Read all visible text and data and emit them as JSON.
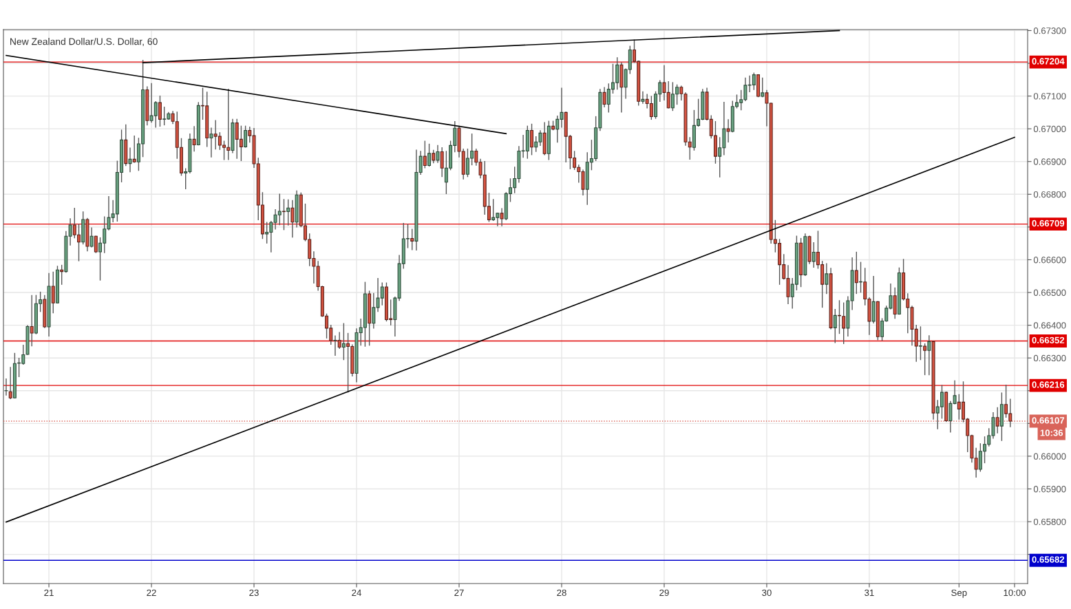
{
  "chart_data": {
    "type": "candlestick",
    "title": "New Zealand Dollar/U.S. Dollar, 60",
    "categories": [
      null,
      null,
      null,
      null,
      null,
      null,
      null,
      null,
      null,
      null,
      "21",
      null,
      null,
      null,
      null,
      null,
      null,
      null,
      null,
      null,
      null,
      null,
      null,
      null,
      null,
      null,
      null,
      null,
      null,
      null,
      null,
      null,
      null,
      null,
      "22",
      null,
      null,
      null,
      null,
      null,
      null,
      null,
      null,
      null,
      null,
      null,
      null,
      null,
      null,
      null,
      null,
      null,
      null,
      null,
      null,
      null,
      null,
      null,
      "23",
      null,
      null,
      null,
      null,
      null,
      null,
      null,
      null,
      null,
      null,
      null,
      null,
      null,
      null,
      null,
      null,
      null,
      null,
      null,
      null,
      null,
      null,
      null,
      "24",
      null,
      null,
      null,
      null,
      null,
      null,
      null,
      null,
      null,
      null,
      null,
      null,
      null,
      null,
      null,
      null,
      null,
      null,
      null,
      null,
      null,
      null,
      null,
      "27",
      null,
      null,
      null,
      null,
      null,
      null,
      null,
      null,
      null,
      null,
      null,
      null,
      null,
      null,
      null,
      null,
      null,
      null,
      null,
      null,
      null,
      null,
      null,
      "28",
      null,
      null,
      null,
      null,
      null,
      null,
      null,
      null,
      null,
      null,
      null,
      null,
      null,
      null,
      null,
      null,
      null,
      null,
      null,
      null,
      null,
      null,
      null,
      "29",
      null,
      null,
      null,
      null,
      null,
      null,
      null,
      null,
      null,
      null,
      null,
      null,
      null,
      null,
      null,
      null,
      null,
      null,
      null,
      null,
      null,
      null,
      null,
      "30",
      null,
      null,
      null,
      null,
      null,
      null,
      null,
      null,
      null,
      null,
      null,
      null,
      null,
      null,
      null,
      null,
      null,
      null,
      null,
      null,
      null,
      null,
      null,
      "31",
      null,
      null,
      null,
      null,
      null,
      null,
      null,
      null,
      null,
      null,
      null,
      null,
      null,
      null,
      null,
      null,
      null,
      null,
      null,
      null,
      "Sep",
      null,
      null,
      null,
      null,
      null,
      null,
      null,
      null,
      null,
      null,
      null,
      null,
      "10:00"
    ],
    "ohlc": [
      [
        0.662,
        0.66236,
        0.66187,
        0.662
      ],
      [
        0.66197,
        0.66271,
        0.66176,
        0.66178
      ],
      [
        0.66178,
        0.66314,
        0.66178,
        0.66283
      ],
      [
        0.66284,
        0.66299,
        0.66243,
        0.66285
      ],
      [
        0.66283,
        0.66339,
        0.66281,
        0.6631
      ],
      [
        0.66311,
        0.66399,
        0.66311,
        0.66396
      ],
      [
        0.66396,
        0.66491,
        0.66337,
        0.66376
      ],
      [
        0.66376,
        0.66491,
        0.66374,
        0.66466
      ],
      [
        0.66466,
        0.66501,
        0.66442,
        0.66478
      ],
      [
        0.66479,
        0.66491,
        0.66393,
        0.66395
      ],
      [
        0.66395,
        0.66558,
        0.66367,
        0.66519
      ],
      [
        0.66519,
        0.66562,
        0.66438,
        0.66468
      ],
      [
        0.66468,
        0.6658,
        0.66468,
        0.66569
      ],
      [
        0.66569,
        0.66583,
        0.66525,
        0.66564
      ],
      [
        0.66564,
        0.66686,
        0.66562,
        0.66672
      ],
      [
        0.66672,
        0.66725,
        0.66645,
        0.66706
      ],
      [
        0.66706,
        0.66757,
        0.66667,
        0.66676
      ],
      [
        0.66676,
        0.66708,
        0.66597,
        0.66654
      ],
      [
        0.66654,
        0.66746,
        0.66648,
        0.66723
      ],
      [
        0.66723,
        0.66726,
        0.66627,
        0.66641
      ],
      [
        0.66641,
        0.66697,
        0.66639,
        0.66672
      ],
      [
        0.66672,
        0.66672,
        0.66622,
        0.66624
      ],
      [
        0.66624,
        0.66667,
        0.66538,
        0.66651
      ],
      [
        0.66651,
        0.66731,
        0.66622,
        0.66694
      ],
      [
        0.66694,
        0.66793,
        0.66691,
        0.66729
      ],
      [
        0.66729,
        0.66781,
        0.66716,
        0.6674
      ],
      [
        0.6674,
        0.66901,
        0.66718,
        0.66867
      ],
      [
        0.66867,
        0.66996,
        0.66838,
        0.66966
      ],
      [
        0.66966,
        0.67012,
        0.66888,
        0.66894
      ],
      [
        0.66894,
        0.66941,
        0.66869,
        0.66907
      ],
      [
        0.66907,
        0.66978,
        0.66898,
        0.66899
      ],
      [
        0.66899,
        0.66971,
        0.66873,
        0.66954
      ],
      [
        0.66954,
        0.67209,
        0.66915,
        0.67119
      ],
      [
        0.67119,
        0.67128,
        0.67012,
        0.67025
      ],
      [
        0.67025,
        0.67138,
        0.6702,
        0.6704
      ],
      [
        0.6704,
        0.67083,
        0.67005,
        0.6708
      ],
      [
        0.6708,
        0.671,
        0.67008,
        0.67029
      ],
      [
        0.67029,
        0.67066,
        0.67012,
        0.6703
      ],
      [
        0.6703,
        0.6705,
        0.67029,
        0.67046
      ],
      [
        0.67046,
        0.67053,
        0.67016,
        0.67023
      ],
      [
        0.67022,
        0.67051,
        0.6691,
        0.66943
      ],
      [
        0.66943,
        0.6697,
        0.66858,
        0.66865
      ],
      [
        0.66865,
        0.66878,
        0.66817,
        0.66869
      ],
      [
        0.66869,
        0.66984,
        0.66865,
        0.66968
      ],
      [
        0.66968,
        0.67007,
        0.66932,
        0.66951
      ],
      [
        0.66951,
        0.6708,
        0.66951,
        0.67071
      ],
      [
        0.67071,
        0.67124,
        0.67029,
        0.6707
      ],
      [
        0.6707,
        0.67112,
        0.66946,
        0.66972
      ],
      [
        0.66972,
        0.67002,
        0.66914,
        0.66984
      ],
      [
        0.66984,
        0.67025,
        0.66938,
        0.66977
      ],
      [
        0.66977,
        0.66988,
        0.66937,
        0.6695
      ],
      [
        0.6695,
        0.66962,
        0.66906,
        0.66943
      ],
      [
        0.66943,
        0.67121,
        0.66906,
        0.66934
      ],
      [
        0.66934,
        0.67029,
        0.66927,
        0.67018
      ],
      [
        0.67018,
        0.67029,
        0.6691,
        0.66968
      ],
      [
        0.66968,
        0.67008,
        0.66903,
        0.66945
      ],
      [
        0.66945,
        0.67008,
        0.66944,
        0.66995
      ],
      [
        0.66995,
        0.67005,
        0.66959,
        0.66979
      ],
      [
        0.66979,
        0.67001,
        0.66882,
        0.66893
      ],
      [
        0.66893,
        0.6691,
        0.66722,
        0.66767
      ],
      [
        0.66767,
        0.66805,
        0.66665,
        0.66679
      ],
      [
        0.66679,
        0.66714,
        0.66651,
        0.66684
      ],
      [
        0.66684,
        0.66717,
        0.66624,
        0.66714
      ],
      [
        0.66714,
        0.66753,
        0.66694,
        0.66737
      ],
      [
        0.66737,
        0.668,
        0.66707,
        0.66748
      ],
      [
        0.66748,
        0.66784,
        0.66692,
        0.66747
      ],
      [
        0.66747,
        0.66783,
        0.66706,
        0.66758
      ],
      [
        0.66758,
        0.66781,
        0.66669,
        0.66715
      ],
      [
        0.66715,
        0.6681,
        0.667,
        0.66798
      ],
      [
        0.66798,
        0.66804,
        0.66701,
        0.66704
      ],
      [
        0.66704,
        0.6677,
        0.66658,
        0.66662
      ],
      [
        0.66662,
        0.66679,
        0.66582,
        0.66604
      ],
      [
        0.66604,
        0.66624,
        0.66529,
        0.6658
      ],
      [
        0.6658,
        0.66595,
        0.66507,
        0.66518
      ],
      [
        0.66518,
        0.66519,
        0.66427,
        0.66428
      ],
      [
        0.66428,
        0.66434,
        0.66361,
        0.66391
      ],
      [
        0.66391,
        0.664,
        0.66342,
        0.66353
      ],
      [
        0.66353,
        0.66367,
        0.66308,
        0.66354
      ],
      [
        0.66354,
        0.66378,
        0.66329,
        0.66333
      ],
      [
        0.66333,
        0.66405,
        0.66295,
        0.66344
      ],
      [
        0.66344,
        0.66375,
        0.66196,
        0.66335
      ],
      [
        0.66335,
        0.6634,
        0.66245,
        0.66253
      ],
      [
        0.66253,
        0.66389,
        0.66227,
        0.66377
      ],
      [
        0.66377,
        0.66419,
        0.66339,
        0.66393
      ],
      [
        0.66393,
        0.66531,
        0.66336,
        0.66496
      ],
      [
        0.66496,
        0.66504,
        0.66339,
        0.66406
      ],
      [
        0.66406,
        0.66497,
        0.66391,
        0.66454
      ],
      [
        0.66454,
        0.66543,
        0.66442,
        0.66483
      ],
      [
        0.66483,
        0.66529,
        0.66462,
        0.66517
      ],
      [
        0.66517,
        0.66529,
        0.66413,
        0.66417
      ],
      [
        0.6642,
        0.66477,
        0.66401,
        0.66417
      ],
      [
        0.66417,
        0.66486,
        0.66367,
        0.66483
      ],
      [
        0.66483,
        0.66613,
        0.66476,
        0.66588
      ],
      [
        0.66588,
        0.66711,
        0.66574,
        0.66664
      ],
      [
        0.66664,
        0.66708,
        0.66637,
        0.66665
      ],
      [
        0.66665,
        0.66693,
        0.66631,
        0.66657
      ],
      [
        0.66657,
        0.66935,
        0.6663,
        0.66867
      ],
      [
        0.66867,
        0.66931,
        0.66861,
        0.66916
      ],
      [
        0.66916,
        0.66962,
        0.66881,
        0.66888
      ],
      [
        0.66888,
        0.66953,
        0.66886,
        0.66925
      ],
      [
        0.66925,
        0.66934,
        0.66896,
        0.66904
      ],
      [
        0.66904,
        0.66949,
        0.66897,
        0.6693
      ],
      [
        0.6693,
        0.66942,
        0.66854,
        0.6688
      ],
      [
        0.66837,
        0.66931,
        0.66802,
        0.6688
      ],
      [
        0.6688,
        0.66962,
        0.66875,
        0.66949
      ],
      [
        0.66949,
        0.67022,
        0.6693,
        0.67002
      ],
      [
        0.67002,
        0.67008,
        0.66914,
        0.66931
      ],
      [
        0.66931,
        0.66938,
        0.66847,
        0.66861
      ],
      [
        0.66861,
        0.66938,
        0.66854,
        0.6691
      ],
      [
        0.6691,
        0.66984,
        0.6689,
        0.66932
      ],
      [
        0.66932,
        0.66938,
        0.66889,
        0.66898
      ],
      [
        0.66898,
        0.66907,
        0.6685,
        0.66859
      ],
      [
        0.66859,
        0.669,
        0.66739,
        0.66763
      ],
      [
        0.66763,
        0.66803,
        0.66717,
        0.66722
      ],
      [
        0.66722,
        0.66784,
        0.6672,
        0.66729
      ],
      [
        0.66729,
        0.66742,
        0.66704,
        0.66742
      ],
      [
        0.66742,
        0.66756,
        0.66704,
        0.66725
      ],
      [
        0.66725,
        0.66805,
        0.66722,
        0.66802
      ],
      [
        0.66802,
        0.66847,
        0.66778,
        0.6682
      ],
      [
        0.6682,
        0.66883,
        0.66805,
        0.66848
      ],
      [
        0.66848,
        0.66946,
        0.66837,
        0.66932
      ],
      [
        0.66932,
        0.6698,
        0.66913,
        0.66933
      ],
      [
        0.66932,
        0.67008,
        0.6691,
        0.66995
      ],
      [
        0.66995,
        0.67014,
        0.66921,
        0.66944
      ],
      [
        0.66944,
        0.66976,
        0.66931,
        0.6696
      ],
      [
        0.6696,
        0.66994,
        0.66949,
        0.66987
      ],
      [
        0.66987,
        0.67019,
        0.66921,
        0.66924
      ],
      [
        0.66924,
        0.67023,
        0.66906,
        0.67008
      ],
      [
        0.67008,
        0.67023,
        0.66997,
        0.66999
      ],
      [
        0.66999,
        0.67039,
        0.66959,
        0.67029
      ],
      [
        0.67029,
        0.67124,
        0.67005,
        0.6705
      ],
      [
        0.6705,
        0.67051,
        0.66899,
        0.66977
      ],
      [
        0.66977,
        0.6698,
        0.66878,
        0.66911
      ],
      [
        0.66911,
        0.66931,
        0.66876,
        0.66882
      ],
      [
        0.66882,
        0.66889,
        0.66837,
        0.66869
      ],
      [
        0.66869,
        0.66874,
        0.66798,
        0.66815
      ],
      [
        0.66815,
        0.66927,
        0.66769,
        0.66898
      ],
      [
        0.66898,
        0.66965,
        0.66875,
        0.66909
      ],
      [
        0.66909,
        0.67037,
        0.66903,
        0.67003
      ],
      [
        0.67003,
        0.6712,
        0.66995,
        0.67111
      ],
      [
        0.67111,
        0.67126,
        0.67067,
        0.67075
      ],
      [
        0.67075,
        0.67137,
        0.67051,
        0.67121
      ],
      [
        0.67121,
        0.67197,
        0.67109,
        0.67141
      ],
      [
        0.67141,
        0.67217,
        0.67121,
        0.67195
      ],
      [
        0.67195,
        0.67201,
        0.67051,
        0.67127
      ],
      [
        0.67127,
        0.67183,
        0.67093,
        0.67181
      ],
      [
        0.67181,
        0.67252,
        0.67169,
        0.67241
      ],
      [
        0.67241,
        0.67271,
        0.67203,
        0.67206
      ],
      [
        0.67206,
        0.67207,
        0.67072,
        0.67084
      ],
      [
        0.67084,
        0.67113,
        0.67078,
        0.6709
      ],
      [
        0.6709,
        0.67105,
        0.67064,
        0.67077
      ],
      [
        0.67077,
        0.67099,
        0.67029,
        0.67037
      ],
      [
        0.67037,
        0.67113,
        0.67032,
        0.67106
      ],
      [
        0.67106,
        0.67147,
        0.67084,
        0.67141
      ],
      [
        0.67141,
        0.67193,
        0.67088,
        0.67111
      ],
      [
        0.67111,
        0.67144,
        0.67064,
        0.67064
      ],
      [
        0.67064,
        0.67141,
        0.67056,
        0.67106
      ],
      [
        0.67106,
        0.67134,
        0.67075,
        0.67127
      ],
      [
        0.67127,
        0.6713,
        0.67088,
        0.67107
      ],
      [
        0.67106,
        0.6711,
        0.6695,
        0.6696
      ],
      [
        0.6696,
        0.66973,
        0.66907,
        0.66944
      ],
      [
        0.66943,
        0.67056,
        0.66935,
        0.6701
      ],
      [
        0.6701,
        0.6709,
        0.67008,
        0.67029
      ],
      [
        0.67029,
        0.6712,
        0.67028,
        0.67112
      ],
      [
        0.67112,
        0.67124,
        0.67027,
        0.67029
      ],
      [
        0.67029,
        0.6704,
        0.66972,
        0.66979
      ],
      [
        0.66979,
        0.67022,
        0.66895,
        0.66916
      ],
      [
        0.66916,
        0.66973,
        0.66853,
        0.66942
      ],
      [
        0.66942,
        0.67081,
        0.66921,
        0.67
      ],
      [
        0.67,
        0.67028,
        0.6696,
        0.66992
      ],
      [
        0.66992,
        0.67084,
        0.66991,
        0.67068
      ],
      [
        0.67068,
        0.67103,
        0.67064,
        0.6708
      ],
      [
        0.6708,
        0.67117,
        0.67058,
        0.67089
      ],
      [
        0.67089,
        0.67155,
        0.67086,
        0.67133
      ],
      [
        0.67133,
        0.67161,
        0.67113,
        0.67134
      ],
      [
        0.67134,
        0.6717,
        0.6712,
        0.67165
      ],
      [
        0.67165,
        0.67165,
        0.67098,
        0.67099
      ],
      [
        0.67099,
        0.67155,
        0.67098,
        0.6711
      ],
      [
        0.6711,
        0.67117,
        0.67009,
        0.67078
      ],
      [
        0.67078,
        0.67078,
        0.66651,
        0.66662
      ],
      [
        0.66662,
        0.6672,
        0.66624,
        0.6665
      ],
      [
        0.6665,
        0.66662,
        0.66525,
        0.66585
      ],
      [
        0.66585,
        0.66616,
        0.66541,
        0.66543
      ],
      [
        0.66543,
        0.66582,
        0.66466,
        0.66487
      ],
      [
        0.66487,
        0.66543,
        0.66452,
        0.66525
      ],
      [
        0.66525,
        0.66672,
        0.66508,
        0.66651
      ],
      [
        0.66651,
        0.66665,
        0.66518,
        0.66554
      ],
      [
        0.66554,
        0.66679,
        0.66552,
        0.66671
      ],
      [
        0.66671,
        0.66672,
        0.66588,
        0.66595
      ],
      [
        0.66595,
        0.66652,
        0.66577,
        0.66623
      ],
      [
        0.66623,
        0.66687,
        0.66574,
        0.66585
      ],
      [
        0.66585,
        0.66595,
        0.66455,
        0.66525
      ],
      [
        0.66525,
        0.66588,
        0.66497,
        0.66557
      ],
      [
        0.66557,
        0.66574,
        0.66389,
        0.66392
      ],
      [
        0.66392,
        0.66448,
        0.66347,
        0.6643
      ],
      [
        0.6643,
        0.66475,
        0.66375,
        0.66429
      ],
      [
        0.66427,
        0.66468,
        0.66344,
        0.66391
      ],
      [
        0.66391,
        0.66487,
        0.66367,
        0.66475
      ],
      [
        0.66475,
        0.66606,
        0.66448,
        0.66567
      ],
      [
        0.66567,
        0.66623,
        0.66497,
        0.6653
      ],
      [
        0.66532,
        0.66592,
        0.66501,
        0.66533
      ],
      [
        0.66532,
        0.66574,
        0.66462,
        0.6648
      ],
      [
        0.6648,
        0.66484,
        0.66372,
        0.66412
      ],
      [
        0.66412,
        0.66549,
        0.66407,
        0.66472
      ],
      [
        0.66472,
        0.66472,
        0.66356,
        0.66365
      ],
      [
        0.66365,
        0.6642,
        0.66354,
        0.66413
      ],
      [
        0.66413,
        0.66458,
        0.66412,
        0.66452
      ],
      [
        0.66452,
        0.66526,
        0.6645,
        0.6649
      ],
      [
        0.6649,
        0.66514,
        0.66421,
        0.66434
      ],
      [
        0.66434,
        0.66575,
        0.66434,
        0.6656
      ],
      [
        0.6656,
        0.66601,
        0.66477,
        0.6648
      ],
      [
        0.6648,
        0.66496,
        0.66377,
        0.66454
      ],
      [
        0.66454,
        0.66458,
        0.66339,
        0.66388
      ],
      [
        0.66388,
        0.664,
        0.6629,
        0.66336
      ],
      [
        0.66336,
        0.66395,
        0.66295,
        0.66337
      ],
      [
        0.66336,
        0.66343,
        0.66249,
        0.66323
      ],
      [
        0.66323,
        0.66368,
        0.66249,
        0.6635
      ],
      [
        0.6635,
        0.66351,
        0.66113,
        0.66132
      ],
      [
        0.66132,
        0.6617,
        0.66084,
        0.66151
      ],
      [
        0.66151,
        0.66216,
        0.66116,
        0.66195
      ],
      [
        0.66195,
        0.66196,
        0.66106,
        0.66108
      ],
      [
        0.66108,
        0.66167,
        0.66074,
        0.66161
      ],
      [
        0.66161,
        0.6623,
        0.6616,
        0.66185
      ],
      [
        0.66165,
        0.66188,
        0.66113,
        0.66144
      ],
      [
        0.66165,
        0.66227,
        0.66105,
        0.66113
      ],
      [
        0.66113,
        0.66115,
        0.66014,
        0.66063
      ],
      [
        0.66063,
        0.66064,
        0.65982,
        0.65994
      ],
      [
        0.65994,
        0.66024,
        0.65936,
        0.6596
      ],
      [
        0.6596,
        0.66038,
        0.65954,
        0.66015
      ],
      [
        0.66015,
        0.66059,
        0.6598,
        0.66036
      ],
      [
        0.66036,
        0.66084,
        0.66031,
        0.66063
      ],
      [
        0.66063,
        0.66133,
        0.66055,
        0.66118
      ],
      [
        0.66118,
        0.66148,
        0.66071,
        0.66092
      ],
      [
        0.66092,
        0.66193,
        0.66048,
        0.66158
      ],
      [
        0.66158,
        0.66217,
        0.66119,
        0.6613
      ],
      [
        0.6613,
        0.66174,
        0.6609,
        0.66107
      ],
      null
    ],
    "series": [
      {
        "type": "line",
        "color": "#000000",
        "values": [
          null,
          null,
          null,
          null,
          null,
          null,
          null,
          null,
          null,
          null,
          null,
          null,
          null,
          null,
          null,
          null,
          null,
          null,
          null,
          null,
          null,
          null,
          null,
          null,
          null,
          null,
          null,
          null,
          null,
          null,
          null,
          null,
          0.67202,
          null,
          null,
          null,
          null,
          null,
          null,
          null,
          null,
          null,
          null,
          null,
          null,
          null,
          null,
          null,
          null,
          null,
          null,
          null,
          null,
          null,
          null,
          null,
          null,
          null,
          null,
          null,
          null,
          null,
          null,
          null,
          null,
          null,
          null,
          null,
          null,
          null,
          null,
          null,
          null,
          null,
          null,
          null,
          null,
          null,
          null,
          null,
          null,
          null,
          null,
          null,
          null,
          null,
          null,
          null,
          null,
          null,
          null,
          null,
          null,
          null,
          null,
          null,
          null,
          null,
          null,
          null,
          null,
          null,
          null,
          null,
          null,
          null,
          null,
          null,
          null,
          null,
          null,
          null,
          null,
          null,
          null,
          null,
          null,
          null,
          null,
          null,
          null,
          null,
          null,
          null,
          null,
          null,
          null,
          null,
          null,
          null,
          null,
          null,
          null,
          null,
          null,
          null,
          null,
          null,
          null,
          null,
          null,
          null,
          null,
          null,
          null,
          null,
          null,
          null,
          null,
          null,
          null,
          null,
          null,
          null,
          null,
          null,
          null,
          null,
          null,
          null,
          null,
          null,
          null,
          null,
          null,
          null,
          null,
          null,
          null,
          null,
          null,
          null,
          null,
          null,
          null,
          null,
          null,
          null,
          null,
          null,
          null,
          null,
          null,
          null,
          null,
          null,
          null,
          null,
          null,
          null,
          null,
          null,
          null,
          null,
          null,
          0.673,
          null,
          null,
          null,
          null,
          null,
          null,
          null,
          null,
          null,
          null,
          null,
          null,
          null,
          null,
          null,
          null,
          null,
          null,
          null,
          null,
          null,
          null,
          null,
          null,
          null,
          null,
          null,
          null,
          null,
          null,
          null,
          null,
          null,
          null,
          null,
          null,
          null,
          null,
          null,
          null,
          null
        ]
      },
      {
        "type": "line",
        "color": "#000000",
        "values": [
          0.67224,
          null,
          null,
          null,
          null,
          null,
          null,
          null,
          null,
          null,
          null,
          null,
          null,
          null,
          null,
          null,
          null,
          null,
          null,
          null,
          null,
          null,
          null,
          null,
          null,
          null,
          null,
          null,
          null,
          null,
          null,
          null,
          null,
          null,
          null,
          null,
          null,
          null,
          null,
          null,
          null,
          null,
          null,
          null,
          null,
          null,
          null,
          null,
          null,
          null,
          null,
          null,
          null,
          null,
          null,
          null,
          null,
          null,
          null,
          null,
          null,
          null,
          null,
          null,
          null,
          null,
          null,
          null,
          null,
          null,
          null,
          null,
          null,
          null,
          null,
          null,
          null,
          null,
          null,
          null,
          null,
          null,
          null,
          null,
          null,
          null,
          null,
          null,
          null,
          null,
          null,
          null,
          null,
          null,
          null,
          null,
          null,
          null,
          null,
          null,
          null,
          null,
          null,
          null,
          null,
          null,
          null,
          null,
          null,
          null,
          null,
          null,
          null,
          null,
          null,
          null,
          null,
          0.66985,
          null,
          null,
          null,
          null,
          null,
          null,
          null,
          null,
          null,
          null,
          null,
          null,
          null,
          null,
          null,
          null,
          null,
          null,
          null,
          null,
          null,
          null,
          null,
          null,
          null,
          null,
          null,
          null,
          null,
          null,
          null,
          null,
          null,
          null,
          null,
          null,
          null,
          null,
          null,
          null,
          null,
          null,
          null,
          null,
          null,
          null,
          null,
          null,
          null,
          null,
          null,
          null,
          null,
          null,
          null,
          null,
          null,
          null,
          null,
          null,
          null,
          null,
          null,
          null,
          null,
          null,
          null,
          null,
          null,
          null,
          null,
          null,
          null,
          null,
          null,
          null,
          null,
          null,
          null,
          null,
          null,
          null,
          null,
          null,
          null,
          null,
          null,
          null,
          null,
          null,
          null,
          null,
          null,
          null,
          null,
          null,
          null,
          null,
          null,
          null,
          null,
          null,
          null,
          null,
          null,
          null,
          null,
          null,
          null,
          null,
          null,
          null,
          null,
          null,
          null,
          null,
          null,
          null,
          null
        ]
      },
      {
        "type": "line",
        "color": "#000000",
        "values": [
          0.65799,
          null,
          null,
          null,
          null,
          null,
          null,
          null,
          null,
          null,
          null,
          null,
          null,
          null,
          null,
          null,
          null,
          null,
          null,
          null,
          null,
          null,
          null,
          null,
          null,
          null,
          null,
          null,
          null,
          null,
          null,
          null,
          null,
          null,
          null,
          null,
          null,
          null,
          null,
          null,
          null,
          null,
          null,
          null,
          null,
          null,
          null,
          null,
          null,
          null,
          null,
          null,
          null,
          null,
          null,
          null,
          null,
          null,
          null,
          null,
          null,
          null,
          null,
          null,
          null,
          null,
          null,
          null,
          null,
          null,
          null,
          null,
          null,
          null,
          null,
          null,
          null,
          null,
          null,
          null,
          null,
          null,
          null,
          null,
          null,
          null,
          null,
          null,
          null,
          null,
          null,
          null,
          null,
          null,
          null,
          null,
          null,
          null,
          null,
          null,
          null,
          null,
          null,
          null,
          null,
          null,
          null,
          null,
          null,
          null,
          null,
          null,
          null,
          null,
          null,
          null,
          null,
          null,
          null,
          null,
          null,
          null,
          null,
          null,
          null,
          null,
          null,
          null,
          null,
          null,
          null,
          null,
          null,
          null,
          null,
          null,
          null,
          null,
          null,
          null,
          null,
          null,
          null,
          null,
          null,
          null,
          null,
          null,
          null,
          null,
          null,
          null,
          null,
          null,
          null,
          null,
          null,
          null,
          null,
          null,
          null,
          null,
          null,
          null,
          null,
          null,
          null,
          null,
          null,
          null,
          null,
          null,
          null,
          null,
          null,
          null,
          null,
          null,
          null,
          null,
          null,
          null,
          null,
          null,
          null,
          null,
          null,
          null,
          null,
          null,
          null,
          null,
          null,
          null,
          null,
          null,
          null,
          null,
          null,
          null,
          null,
          null,
          null,
          null,
          null,
          null,
          null,
          null,
          null,
          null,
          null,
          null,
          null,
          null,
          null,
          null,
          null,
          null,
          null,
          null,
          null,
          null,
          null,
          null,
          null,
          null,
          null,
          null,
          null,
          null,
          null,
          null,
          null,
          null,
          null,
          null,
          0.66974
        ]
      }
    ],
    "ylim": [
      0.65611,
      0.67303
    ],
    "yticks": [
      {
        "value": 0.657,
        "label": null
      },
      {
        "value": 0.658,
        "label": "0.65800"
      },
      {
        "value": 0.659,
        "label": "0.65900"
      },
      {
        "value": 0.66,
        "label": "0.66000"
      },
      {
        "value": 0.661,
        "label": null
      },
      {
        "value": 0.662,
        "label": null
      },
      {
        "value": 0.663,
        "label": "0.66300"
      },
      {
        "value": 0.664,
        "label": "0.66400"
      },
      {
        "value": 0.665,
        "label": "0.66500"
      },
      {
        "value": 0.666,
        "label": "0.66600"
      },
      {
        "value": 0.667,
        "label": null
      },
      {
        "value": 0.668,
        "label": "0.66800"
      },
      {
        "value": 0.669,
        "label": "0.66900"
      },
      {
        "value": 0.67,
        "label": "0.67000"
      },
      {
        "value": 0.671,
        "label": "0.67100"
      },
      {
        "value": 0.672,
        "label": null
      },
      {
        "value": 0.673,
        "label": "0.67300"
      }
    ],
    "grid": true,
    "ref_lines": [
      {
        "axis": "y",
        "value": 0.67204,
        "label": "0.67204",
        "color": "#e00000",
        "line_style": "solid"
      },
      {
        "axis": "y",
        "value": 0.66709,
        "label": "0.66709",
        "color": "#e00000",
        "line_style": "solid"
      },
      {
        "axis": "y",
        "value": 0.66352,
        "label": "0.66352",
        "color": "#e00000",
        "line_style": "solid"
      },
      {
        "axis": "y",
        "value": 0.66216,
        "label": "0.66216",
        "color": "#e00000",
        "line_style": "solid"
      },
      {
        "axis": "y",
        "value": 0.65682,
        "label": "0.65682",
        "color": "#0000cc",
        "line_style": "solid"
      },
      {
        "axis": "y",
        "value": 0.66107,
        "label": "0.66107",
        "color": "#d9645a",
        "line_style": "dotted"
      }
    ],
    "annotations": [
      "10:36"
    ]
  }
}
